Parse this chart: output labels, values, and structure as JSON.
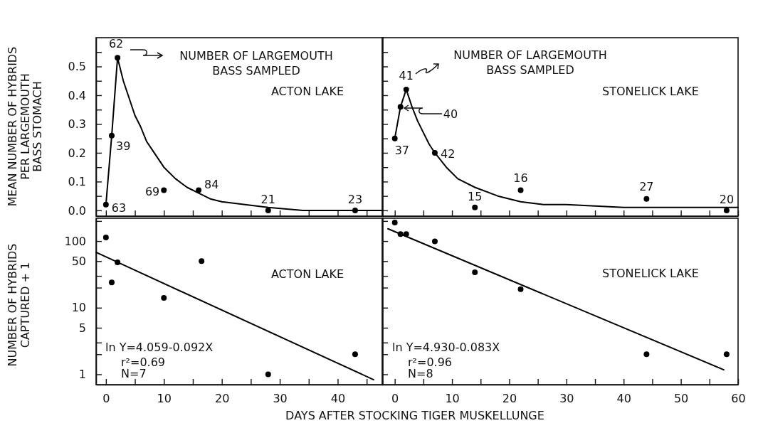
{
  "chart_data": [
    {
      "type": "scatter",
      "ylabel": "MEAN NUMBER OF HYBRIDS\nPER LARGEMOUTH\nBASS STOMACH",
      "xlim": [
        -1.7,
        47.8
      ],
      "ylim": [
        -0.02,
        0.6
      ],
      "xticks": [
        {
          "value": 0,
          "label": null
        },
        {
          "value": 5,
          "label": null
        },
        {
          "value": 10,
          "label": null
        },
        {
          "value": 15,
          "label": null
        },
        {
          "value": 20,
          "label": null
        },
        {
          "value": 25,
          "label": null
        },
        {
          "value": 30,
          "label": null
        },
        {
          "value": 35,
          "label": null
        },
        {
          "value": 40,
          "label": null
        },
        {
          "value": 45,
          "label": null
        }
      ],
      "yticks": [
        {
          "value": 0,
          "label": "0.0"
        },
        {
          "value": 0.05,
          "label": null
        },
        0.1,
        {
          "value": 0.15,
          "label": null
        },
        0.2,
        {
          "value": 0.25,
          "label": null
        },
        0.3,
        {
          "value": 0.35,
          "label": null
        },
        0.4,
        {
          "value": 0.45,
          "label": null
        },
        0.5,
        {
          "value": 0.55,
          "label": null
        }
      ],
      "tick_labels": "y",
      "series": [
        {
          "marker": "circle",
          "color": "#000000",
          "x": [
            0,
            1,
            2,
            10,
            16,
            28,
            43
          ],
          "values": [
            0.02,
            0.26,
            0.53,
            0.07,
            0.07,
            0,
            0
          ]
        },
        {
          "type": "line",
          "marker": "none",
          "color": "#000000",
          "x": [
            0,
            1,
            2,
            3,
            4,
            5,
            6,
            7,
            8,
            10,
            12,
            14,
            16,
            18,
            20,
            24,
            28,
            34,
            40,
            47.8
          ],
          "values": [
            0.02,
            0.26,
            0.53,
            0.45,
            0.39,
            0.33,
            0.29,
            0.24,
            0.21,
            0.15,
            0.11,
            0.08,
            0.06,
            0.04,
            0.03,
            0.02,
            0.01,
            0,
            0,
            0
          ]
        }
      ],
      "annotations": [
        "NUMBER OF LARGEMOUTH\nBASS SAMPLED",
        "ACTON LAKE",
        {
          "text": "63",
          "x": 0,
          "y": 0.02
        },
        {
          "text": "39",
          "x": 1,
          "y": 0.26
        },
        {
          "text": "62",
          "x": 2,
          "y": 0.53
        },
        {
          "text": "69",
          "x": 10,
          "y": 0.07
        },
        {
          "text": "84",
          "x": 16,
          "y": 0.07
        },
        {
          "text": "21",
          "x": 28,
          "y": 0
        },
        {
          "text": "23",
          "x": 43,
          "y": 0
        }
      ]
    },
    {
      "type": "scatter",
      "xlim": [
        -2.2,
        60
      ],
      "ylim": [
        -0.02,
        0.6
      ],
      "xticks": [
        {
          "value": 0,
          "label": null
        },
        {
          "value": 5,
          "label": null
        },
        {
          "value": 10,
          "label": null
        },
        {
          "value": 15,
          "label": null
        },
        {
          "value": 20,
          "label": null
        },
        {
          "value": 25,
          "label": null
        },
        {
          "value": 30,
          "label": null
        },
        {
          "value": 35,
          "label": null
        },
        {
          "value": 40,
          "label": null
        },
        {
          "value": 45,
          "label": null
        },
        {
          "value": 50,
          "label": null
        },
        {
          "value": 55,
          "label": null
        },
        {
          "value": 60,
          "label": null
        }
      ],
      "yticks": [
        {
          "value": 0,
          "label": null
        },
        {
          "value": 0.05,
          "label": null
        },
        {
          "value": 0.1,
          "label": null
        },
        {
          "value": 0.15,
          "label": null
        },
        {
          "value": 0.2,
          "label": null
        },
        {
          "value": 0.25,
          "label": null
        },
        {
          "value": 0.3,
          "label": null
        },
        {
          "value": 0.35,
          "label": null
        },
        {
          "value": 0.4,
          "label": null
        },
        {
          "value": 0.45,
          "label": null
        },
        {
          "value": 0.5,
          "label": null
        },
        {
          "value": 0.55,
          "label": null
        }
      ],
      "tick_labels": false,
      "series": [
        {
          "marker": "circle",
          "color": "#000000",
          "x": [
            0,
            1,
            2,
            7,
            14,
            22,
            44,
            58
          ],
          "values": [
            0.25,
            0.36,
            0.42,
            0.2,
            0.01,
            0.07,
            0.04,
            0
          ]
        },
        {
          "type": "line",
          "marker": "none",
          "color": "#000000",
          "x": [
            0,
            1,
            2,
            3,
            4,
            5,
            6,
            7,
            9,
            11,
            14,
            18,
            22,
            26,
            30,
            40,
            50,
            60
          ],
          "values": [
            0.25,
            0.36,
            0.42,
            0.36,
            0.31,
            0.27,
            0.23,
            0.2,
            0.15,
            0.11,
            0.08,
            0.05,
            0.03,
            0.02,
            0.02,
            0.01,
            0.01,
            0.01
          ]
        }
      ],
      "annotations": [
        "NUMBER OF LARGEMOUTH\nBASS SAMPLED",
        "STONELICK LAKE",
        {
          "text": "37",
          "x": 0,
          "y": 0.25
        },
        {
          "text": "40",
          "x": 1,
          "y": 0.36
        },
        {
          "text": "41",
          "x": 2,
          "y": 0.42
        },
        {
          "text": "42",
          "x": 7,
          "y": 0.2
        },
        {
          "text": "15",
          "x": 14,
          "y": 0.01
        },
        {
          "text": "16",
          "x": 22,
          "y": 0.07
        },
        {
          "text": "27",
          "x": 44,
          "y": 0.04
        },
        {
          "text": "20",
          "x": 58,
          "y": 0
        }
      ]
    },
    {
      "type": "scatter",
      "ylabel": "NUMBER OF HYBRIDS\nCAPTURED + 1",
      "xlabel": "DAYS AFTER STOCKING TIGER MUSKELLUNGE",
      "log": "y",
      "xlim": [
        -1.7,
        47.8
      ],
      "ylim": [
        0.7,
        220
      ],
      "xticks": [
        0,
        {
          "value": 5,
          "label": null
        },
        10,
        {
          "value": 15,
          "label": null
        },
        20,
        {
          "value": 25,
          "label": null
        },
        30,
        {
          "value": 35,
          "label": null
        },
        40,
        {
          "value": 45,
          "label": null
        }
      ],
      "yticks": [
        {
          "value": 200,
          "label": null
        },
        100,
        50,
        {
          "value": 30,
          "label": null
        },
        {
          "value": 20,
          "label": null
        },
        10,
        5,
        {
          "value": 3,
          "label": null
        },
        {
          "value": 2,
          "label": null
        },
        1
      ],
      "series": [
        {
          "marker": "circle",
          "color": "#000000",
          "x": [
            0,
            1,
            2,
            10,
            16.5,
            28,
            43
          ],
          "values": [
            113,
            24,
            48,
            14,
            50,
            1,
            2
          ]
        },
        {
          "type": "line",
          "marker": "none",
          "color": "#000000",
          "x": [
            -1.7,
            46.2
          ],
          "values": [
            67.7,
            0.83
          ]
        }
      ],
      "annotations": [
        "ACTON LAKE",
        "ln Y=4.059-0.092X",
        "r²=0.69",
        "N=7"
      ]
    },
    {
      "type": "scatter",
      "log": "y",
      "xlim": [
        -2.2,
        60
      ],
      "ylim": [
        0.7,
        220
      ],
      "xticks": [
        0,
        {
          "value": 5,
          "label": null
        },
        10,
        {
          "value": 15,
          "label": null
        },
        20,
        {
          "value": 25,
          "label": null
        },
        30,
        {
          "value": 35,
          "label": null
        },
        40,
        {
          "value": 45,
          "label": null
        },
        50,
        {
          "value": 55,
          "label": null
        },
        60
      ],
      "yticks": [
        {
          "value": 200,
          "label": null
        },
        {
          "value": 100,
          "label": null
        },
        {
          "value": 50,
          "label": null
        },
        {
          "value": 30,
          "label": null
        },
        {
          "value": 20,
          "label": null
        },
        {
          "value": 10,
          "label": null
        },
        {
          "value": 5,
          "label": null
        },
        {
          "value": 3,
          "label": null
        },
        {
          "value": 2,
          "label": null
        },
        {
          "value": 1,
          "label": null
        }
      ],
      "tick_labels": "x",
      "series": [
        {
          "marker": "circle",
          "color": "#000000",
          "x": [
            0,
            1,
            2,
            7,
            14,
            22,
            44,
            58
          ],
          "values": [
            190,
            127,
            127,
            99,
            34,
            19,
            2,
            2
          ]
        },
        {
          "type": "line",
          "marker": "none",
          "color": "#000000",
          "x": [
            -1.2,
            57.5
          ],
          "values": [
            153,
            1.17
          ]
        }
      ],
      "annotations": [
        "STONELICK LAKE",
        "ln Y=4.930-0.083X",
        "r²=0.96",
        "N=8"
      ]
    }
  ]
}
